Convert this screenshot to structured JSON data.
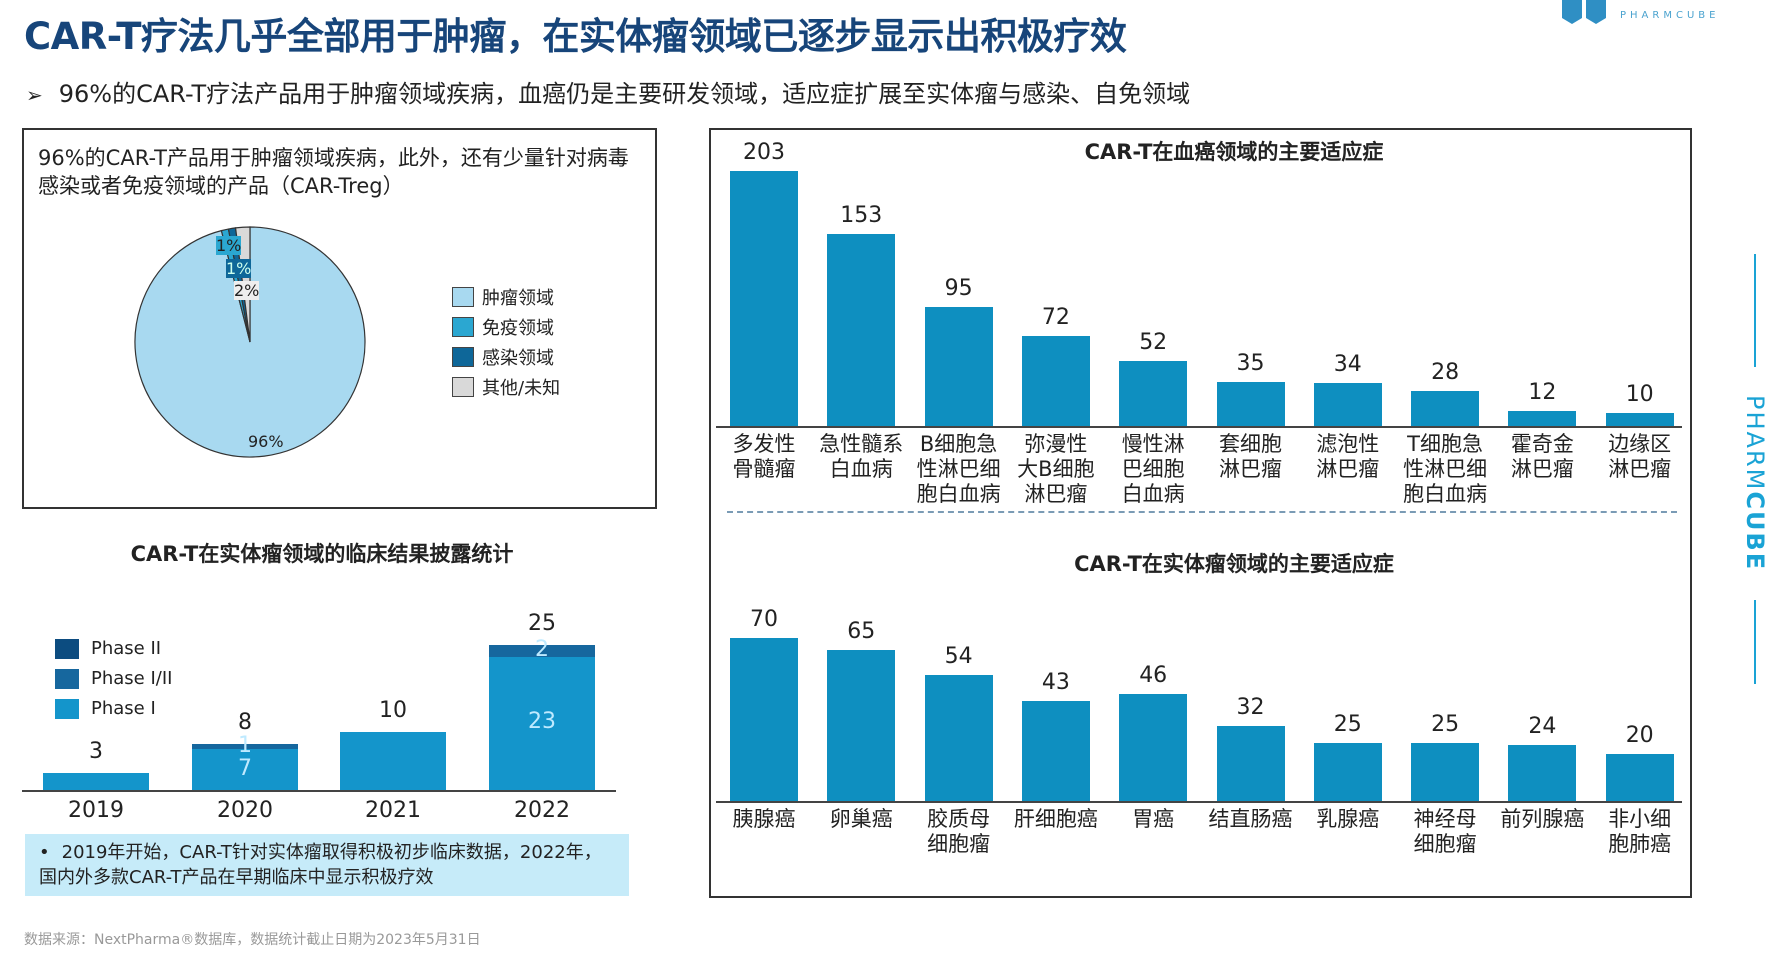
{
  "header": {
    "title": "CAR-T疗法几乎全部用于肿瘤，在实体瘤领域已逐步显示出积极疗效",
    "subtitle_bullet": "➢",
    "subtitle": "96%的CAR-T疗法产品用于肿瘤领域疾病，血癌仍是主要研发领域，适应症扩展至实体瘤与感染、自免领域"
  },
  "logo": {
    "text": "PHARMCUBE",
    "side_text_light": "PHARM",
    "side_text_bold": "CUBE"
  },
  "pie_panel": {
    "description": "96%的CAR-T产品用于肿瘤领域疾病，此外，还有少量针对病毒感染或者免疫领域的产品（CAR-Treg）"
  },
  "note": {
    "bullet": "•",
    "text": "2019年开始，CAR-T针对实体瘤取得积极初步临床数据，2022年，国内外多款CAR-T产品在早期临床中显示积极疗效"
  },
  "footer": {
    "source": "数据来源：NextPharma®数据库，数据统计截止日期为2023年5月31日"
  },
  "chart_data": [
    {
      "type": "pie",
      "slices": [
        {
          "name": "肿瘤领域",
          "value": 96,
          "label": "96%",
          "color": "#a8d9f0"
        },
        {
          "name": "免疫领域",
          "value": 1,
          "label": "1%",
          "color": "#2ba7d1"
        },
        {
          "name": "感染领域",
          "value": 1,
          "label": "1%",
          "color": "#0e6799"
        },
        {
          "name": "其他/未知",
          "value": 2,
          "label": "2%",
          "color": "#d9d9d9"
        }
      ],
      "legend_position": "right"
    },
    {
      "type": "bar",
      "stacked": true,
      "title": "CAR-T在实体瘤领域的临床结果披露统计",
      "categories": [
        "2019",
        "2020",
        "2021",
        "2022"
      ],
      "series": [
        {
          "name": "Phase II",
          "values": [
            0,
            0,
            0,
            0
          ],
          "color": "#0c4c80"
        },
        {
          "name": "Phase I/II",
          "values": [
            0,
            1,
            0,
            2
          ],
          "color": "#16679e"
        },
        {
          "name": "Phase I",
          "values": [
            3,
            7,
            10,
            23
          ],
          "color": "#1495cb"
        }
      ],
      "totals": [
        3,
        8,
        10,
        25
      ],
      "legend_position": "top-left",
      "grid": false
    },
    {
      "type": "bar",
      "title": "CAR-T在血癌领域的主要适应症",
      "categories": [
        "多发性\n骨髓瘤",
        "急性髓系\n白血病",
        "B细胞急\n性淋巴细\n胞白血病",
        "弥漫性\n大B细胞\n淋巴瘤",
        "慢性淋\n巴细胞\n白血病",
        "套细胞\n淋巴瘤",
        "滤泡性\n淋巴瘤",
        "T细胞急\n性淋巴细\n胞白血病",
        "霍奇金\n淋巴瘤",
        "边缘区\n淋巴瘤"
      ],
      "values": [
        203,
        153,
        95,
        72,
        52,
        35,
        34,
        28,
        12,
        10
      ],
      "color": "#0e8fc0",
      "grid": false
    },
    {
      "type": "bar",
      "title": "CAR-T在实体瘤领域的主要适应症",
      "categories": [
        "胰腺癌",
        "卵巢癌",
        "胶质母\n细胞瘤",
        "肝细胞癌",
        "胃癌",
        "结直肠癌",
        "乳腺癌",
        "神经母\n细胞瘤",
        "前列腺癌",
        "非小细\n胞肺癌"
      ],
      "values": [
        70,
        65,
        54,
        43,
        46,
        32,
        25,
        25,
        24,
        20
      ],
      "color": "#0e8fc0",
      "grid": false
    }
  ]
}
